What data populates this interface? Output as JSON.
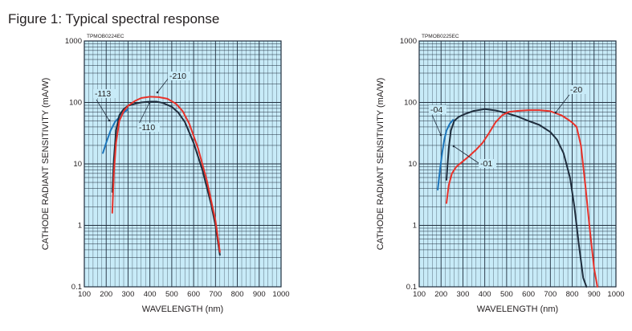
{
  "figure_title": "Figure 1: Typical spectral response",
  "chart_data": [
    {
      "type": "line",
      "code": "TPMOB0224EC",
      "xlabel": "WAVELENGTH (nm)",
      "ylabel": "CATHODE RADIANT SENSITIVITY (mA/W)",
      "xlim": [
        100,
        1000
      ],
      "ylim": [
        0.1,
        1000
      ],
      "yscale": "log",
      "grid": true,
      "background": "#c8ebf8",
      "x_ticks": [
        "100",
        "200",
        "300",
        "400",
        "500",
        "600",
        "700",
        "800",
        "900",
        "1000"
      ],
      "y_ticks": [
        "0.1",
        "1",
        "10",
        "100",
        "1000"
      ],
      "series": [
        {
          "name": "-113",
          "color": "#1b75bb",
          "x": [
            185,
            200,
            220,
            240,
            260,
            280,
            300
          ],
          "y": [
            15,
            22,
            35,
            48,
            58,
            68,
            78
          ]
        },
        {
          "name": "-110",
          "color": "#1f2d3d",
          "x": [
            228,
            235,
            245,
            260,
            280,
            300,
            330,
            360,
            400,
            430,
            460,
            500,
            530,
            560,
            600,
            640,
            680,
            700,
            720
          ],
          "y": [
            3.5,
            12,
            35,
            62,
            78,
            88,
            95,
            100,
            103,
            103,
            98,
            85,
            68,
            48,
            22,
            8,
            2.2,
            1,
            0.33
          ]
        },
        {
          "name": "-210",
          "color": "#e8322a",
          "x": [
            228,
            235,
            245,
            260,
            280,
            300,
            330,
            360,
            400,
            440,
            480,
            520,
            550,
            580,
            620,
            660,
            700,
            720
          ],
          "y": [
            1.6,
            7,
            22,
            50,
            72,
            88,
            105,
            118,
            124,
            122,
            115,
            95,
            72,
            45,
            18,
            5.5,
            1.2,
            0.37
          ]
        }
      ],
      "labels": [
        {
          "text": "-113",
          "series": "-113"
        },
        {
          "text": "-110",
          "series": "-110"
        },
        {
          "text": "-210",
          "series": "-210"
        }
      ]
    },
    {
      "type": "line",
      "code": "TPMOB0225EC",
      "xlabel": "WAVELENGTH (nm)",
      "ylabel": "CATHODE RADIANT SENSITIVITY (mA/W)",
      "xlim": [
        100,
        1000
      ],
      "ylim": [
        0.1,
        1000
      ],
      "yscale": "log",
      "grid": true,
      "background": "#c8ebf8",
      "x_ticks": [
        "100",
        "200",
        "300",
        "400",
        "500",
        "600",
        "700",
        "800",
        "900",
        "1000"
      ],
      "y_ticks": [
        "0.1",
        "1",
        "10",
        "100",
        "1000"
      ],
      "series": [
        {
          "name": "-04",
          "color": "#1b75bb",
          "x": [
            185,
            195,
            205,
            215,
            225,
            240,
            255
          ],
          "y": [
            3.8,
            8,
            15,
            25,
            35,
            45,
            52
          ]
        },
        {
          "name": "-01",
          "color": "#1f2d3d",
          "x": [
            225,
            235,
            245,
            260,
            280,
            310,
            350,
            400,
            450,
            500,
            550,
            600,
            650,
            700,
            730,
            760,
            790,
            810,
            830,
            850,
            865
          ],
          "y": [
            5.5,
            18,
            35,
            50,
            58,
            65,
            73,
            78,
            74,
            67,
            59,
            50,
            43,
            33,
            25,
            15,
            6,
            2,
            0.5,
            0.14,
            0.1
          ]
        },
        {
          "name": "-20",
          "color": "#e8322a",
          "x": [
            225,
            235,
            250,
            270,
            300,
            330,
            360,
            390,
            420,
            450,
            480,
            510,
            550,
            600,
            650,
            700,
            750,
            780,
            800,
            820,
            840,
            860,
            880,
            900,
            915
          ],
          "y": [
            2.3,
            4.5,
            7,
            9,
            11,
            13.5,
            17,
            22,
            32,
            48,
            62,
            70,
            73,
            75,
            75,
            72,
            62,
            53,
            47,
            40,
            20,
            4.5,
            0.9,
            0.2,
            0.1
          ]
        }
      ],
      "labels": [
        {
          "text": "-04",
          "series": "-04"
        },
        {
          "text": "-01",
          "series": "-01"
        },
        {
          "text": "-20",
          "series": "-20"
        }
      ]
    }
  ]
}
